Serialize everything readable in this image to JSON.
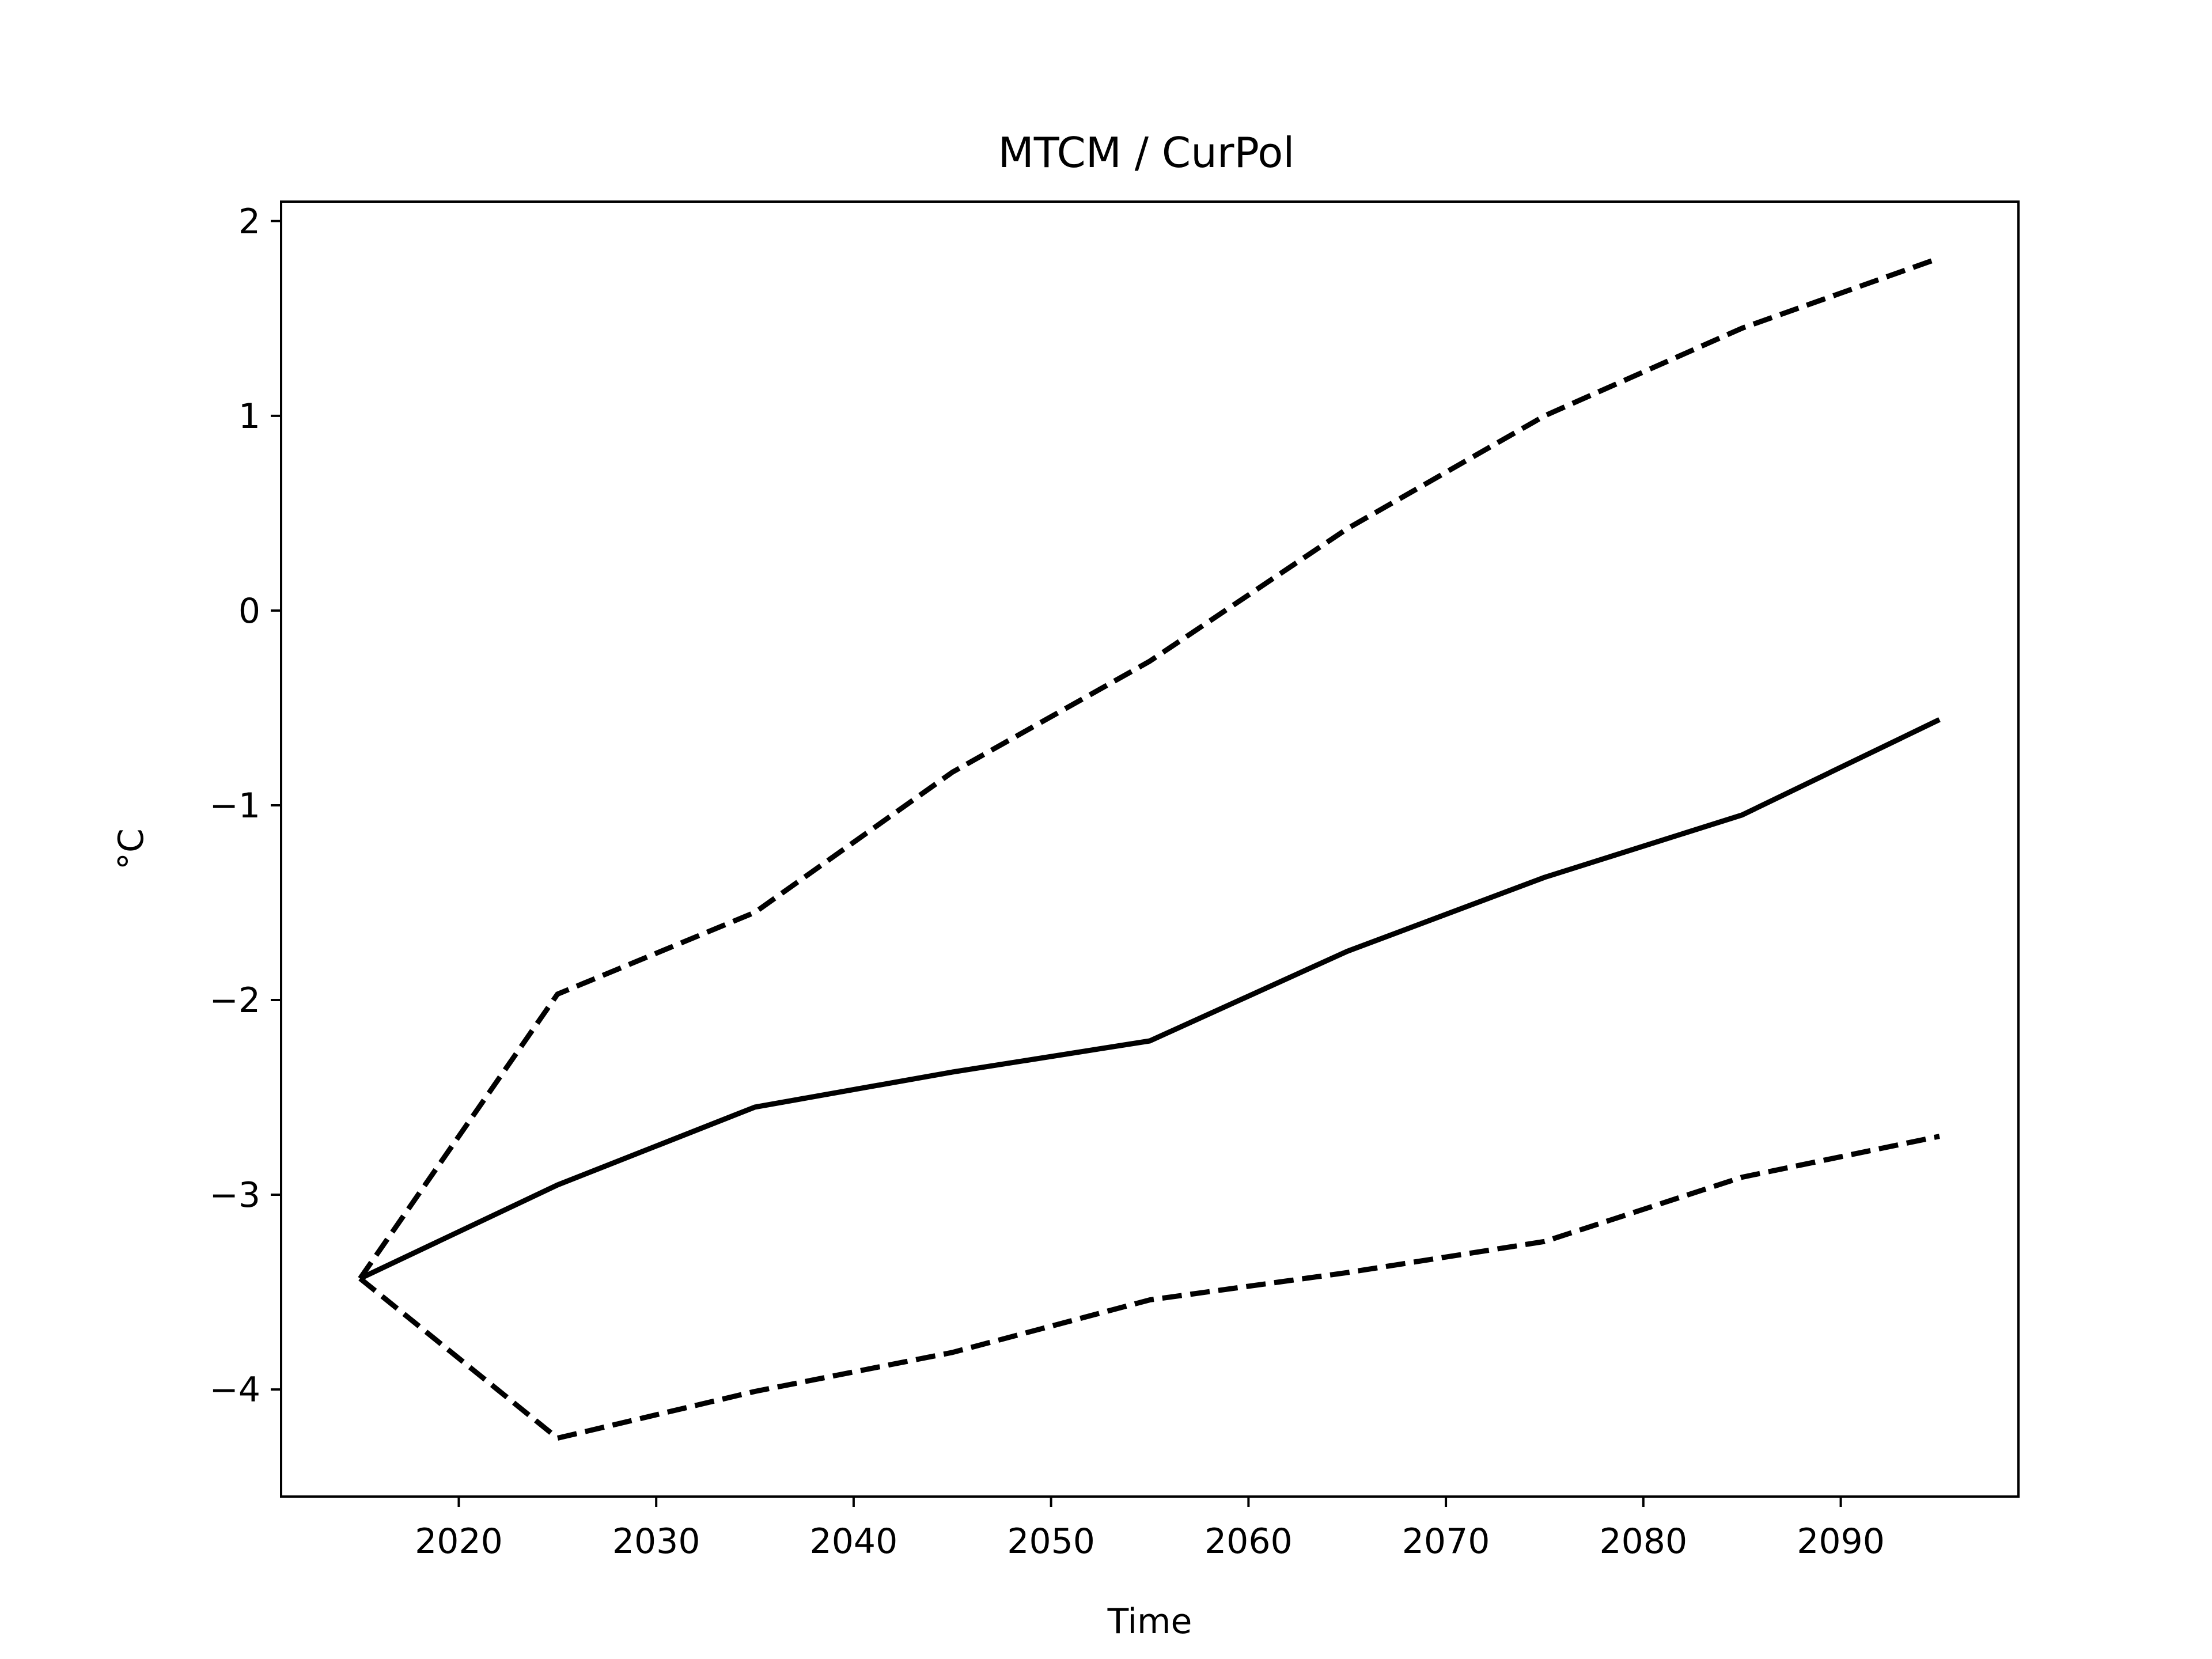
{
  "chart_data": {
    "type": "line",
    "title": "MTCM / CurPol",
    "xlabel": "Time",
    "ylabel": "°C",
    "x": [
      2015,
      2025,
      2035,
      2045,
      2055,
      2065,
      2075,
      2085,
      2095
    ],
    "series": [
      {
        "style": "solid",
        "color": "#000000",
        "values": [
          -3.43,
          -2.95,
          -2.55,
          -2.37,
          -2.21,
          -1.75,
          -1.37,
          -1.05,
          -0.56
        ]
      },
      {
        "style": "dashed",
        "color": "#000000",
        "values": [
          -3.43,
          -1.97,
          -1.55,
          -0.83,
          -0.26,
          0.42,
          1.0,
          1.45,
          1.81
        ]
      },
      {
        "style": "dashed",
        "color": "#000000",
        "values": [
          -3.43,
          -4.25,
          -4.01,
          -3.81,
          -3.54,
          -3.4,
          -3.24,
          -2.91,
          -2.7
        ]
      }
    ],
    "xlim": [
      2011,
      2099
    ],
    "ylim": [
      -4.55,
      2.1
    ],
    "xticks": [
      2020,
      2030,
      2040,
      2050,
      2060,
      2070,
      2080,
      2090
    ],
    "yticks": [
      2,
      1,
      0,
      -1,
      -2,
      -3,
      -4
    ],
    "ytick_labels": [
      "2",
      "1",
      "0",
      "−1",
      "−2",
      "−3",
      "−4"
    ],
    "grid": false,
    "legend": false
  }
}
